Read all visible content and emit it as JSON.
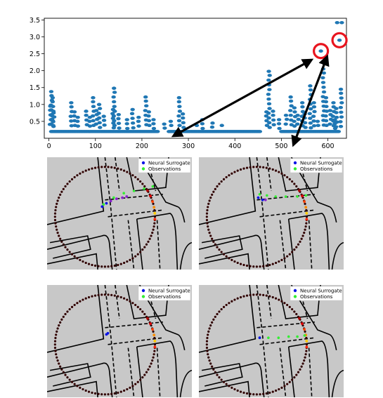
{
  "chart_data": [
    {
      "type": "scatter",
      "xlim": [
        -10,
        640
      ],
      "ylim": [
        0.0,
        3.55
      ],
      "xticks": [
        0,
        100,
        200,
        300,
        400,
        500,
        600
      ],
      "yticks": [
        0.5,
        1.0,
        1.5,
        2.0,
        2.5,
        3.0,
        3.5
      ],
      "xtick_labels": [
        "0",
        "100",
        "200",
        "300",
        "400",
        "500",
        "600"
      ],
      "ytick_labels": [
        "0.5",
        "1.0",
        "1.5",
        "2.0",
        "2.5",
        "3.0",
        "3.5"
      ],
      "color": "#1f77b4",
      "highlight_color": "#e8141e",
      "highlighted_points": [
        {
          "x": 585,
          "y": 2.58
        },
        {
          "x": 625,
          "y": 2.9
        }
      ],
      "peaks": [
        {
          "x": 5,
          "y": 1.38
        },
        {
          "x": 8,
          "y": 1.2
        },
        {
          "x": 3,
          "y": 0.95
        },
        {
          "x": 10,
          "y": 0.75
        },
        {
          "x": 48,
          "y": 1.05
        },
        {
          "x": 55,
          "y": 0.78
        },
        {
          "x": 62,
          "y": 0.62
        },
        {
          "x": 80,
          "y": 0.8
        },
        {
          "x": 88,
          "y": 0.62
        },
        {
          "x": 95,
          "y": 1.2
        },
        {
          "x": 102,
          "y": 0.82
        },
        {
          "x": 108,
          "y": 1.0
        },
        {
          "x": 118,
          "y": 0.65
        },
        {
          "x": 138,
          "y": 0.85
        },
        {
          "x": 140,
          "y": 1.48
        },
        {
          "x": 150,
          "y": 0.7
        },
        {
          "x": 168,
          "y": 0.55
        },
        {
          "x": 180,
          "y": 0.85
        },
        {
          "x": 193,
          "y": 0.62
        },
        {
          "x": 208,
          "y": 1.22
        },
        {
          "x": 215,
          "y": 0.78
        },
        {
          "x": 225,
          "y": 0.55
        },
        {
          "x": 248,
          "y": 0.42
        },
        {
          "x": 262,
          "y": 0.5
        },
        {
          "x": 280,
          "y": 1.2
        },
        {
          "x": 288,
          "y": 0.72
        },
        {
          "x": 318,
          "y": 0.38
        },
        {
          "x": 330,
          "y": 0.55
        },
        {
          "x": 352,
          "y": 0.45
        },
        {
          "x": 372,
          "y": 0.38
        },
        {
          "x": 468,
          "y": 0.78
        },
        {
          "x": 473,
          "y": 1.98
        },
        {
          "x": 482,
          "y": 0.8
        },
        {
          "x": 495,
          "y": 0.55
        },
        {
          "x": 510,
          "y": 0.68
        },
        {
          "x": 520,
          "y": 1.22
        },
        {
          "x": 528,
          "y": 0.9
        },
        {
          "x": 535,
          "y": 0.68
        },
        {
          "x": 545,
          "y": 1.05
        },
        {
          "x": 550,
          "y": 0.72
        },
        {
          "x": 562,
          "y": 1.55
        },
        {
          "x": 570,
          "y": 1.05
        },
        {
          "x": 578,
          "y": 0.5
        },
        {
          "x": 585,
          "y": 2.58
        },
        {
          "x": 590,
          "y": 2.05
        },
        {
          "x": 596,
          "y": 1.2
        },
        {
          "x": 605,
          "y": 0.82
        },
        {
          "x": 612,
          "y": 1.05
        },
        {
          "x": 618,
          "y": 0.88
        },
        {
          "x": 620,
          "y": 3.42
        },
        {
          "x": 625,
          "y": 2.9
        },
        {
          "x": 628,
          "y": 1.45
        },
        {
          "x": 630,
          "y": 3.42
        },
        {
          "x": 615,
          "y": 0.55
        }
      ],
      "baseline_y": 0.2,
      "baseline_ranges": [
        [
          5,
          235
        ],
        [
          258,
          455
        ],
        [
          500,
          625
        ]
      ]
    }
  ],
  "trajectory_panels": {
    "legend": {
      "surrogate_label": "Neural Surrogate",
      "observations_label": "Observations",
      "surrogate_color": "#0a14e6",
      "observations_color": "#33ee33"
    },
    "background_color": "#c8c8c8",
    "ring_color": "#300000",
    "road_color": "#000000",
    "panels": [
      {
        "name": "top-left"
      },
      {
        "name": "top-right"
      },
      {
        "name": "bottom-left"
      },
      {
        "name": "bottom-right"
      }
    ]
  }
}
